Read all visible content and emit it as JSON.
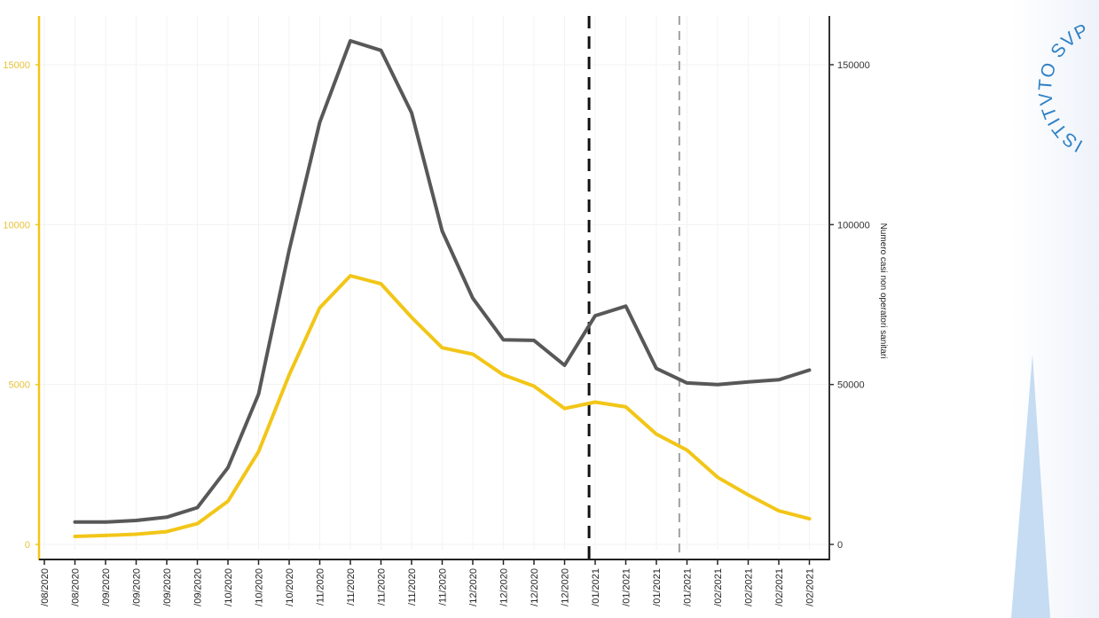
{
  "chart_data": {
    "type": "line",
    "title": "",
    "xlabel": "",
    "ylabel_left": "",
    "ylabel_right": "Numero casi non operatori sanitari",
    "x_tick_labels": [
      "/08/2020",
      "/08/2020",
      "/09/2020",
      "/09/2020",
      "/09/2020",
      "/09/2020",
      "/10/2020",
      "/10/2020",
      "/10/2020",
      "/11/2020",
      "/11/2020",
      "/11/2020",
      "/11/2020",
      "/11/2020",
      "/12/2020",
      "/12/2020",
      "/12/2020",
      "/12/2020",
      "/01/2021",
      "/01/2021",
      "/01/2021",
      "/01/2021",
      "/02/2021",
      "/02/2021",
      "/02/2021",
      "/02/2021"
    ],
    "y_left_ticks": [
      "0",
      "5000",
      "10000",
      "15000"
    ],
    "y_left_ticks_shown": [
      "0",
      "5000",
      "10000",
      "15000"
    ],
    "y_right_ticks": [
      "0",
      "50000",
      "100000",
      "150000"
    ],
    "ylim_left": [
      0,
      16500
    ],
    "ylim_right": [
      0,
      165000
    ],
    "grid": true,
    "series": [
      {
        "axis": "right",
        "color": "#585858",
        "points": [
          [
            1,
            7000
          ],
          [
            2,
            7000
          ],
          [
            3,
            7500
          ],
          [
            4,
            8500
          ],
          [
            5,
            11500
          ],
          [
            6,
            24000
          ],
          [
            7,
            47000
          ],
          [
            8,
            92000
          ],
          [
            9,
            132000
          ],
          [
            10,
            157500
          ],
          [
            11,
            154500
          ],
          [
            12,
            135000
          ],
          [
            13,
            98000
          ],
          [
            14,
            77000
          ],
          [
            15,
            64000
          ],
          [
            16,
            63800
          ],
          [
            17,
            56000
          ],
          [
            18,
            71500
          ],
          [
            19,
            74500
          ],
          [
            20,
            55000
          ],
          [
            21,
            50500
          ],
          [
            22,
            50000
          ],
          [
            23,
            50800
          ],
          [
            24,
            51500
          ],
          [
            25,
            54500
          ]
        ]
      },
      {
        "axis": "left",
        "color": "#f2c618",
        "points": [
          [
            1,
            250
          ],
          [
            2,
            280
          ],
          [
            3,
            320
          ],
          [
            4,
            400
          ],
          [
            5,
            650
          ],
          [
            6,
            1350
          ],
          [
            7,
            2900
          ],
          [
            8,
            5300
          ],
          [
            9,
            7400
          ],
          [
            10,
            8400
          ],
          [
            11,
            8150
          ],
          [
            12,
            7100
          ],
          [
            13,
            6150
          ],
          [
            14,
            5950
          ],
          [
            15,
            5300
          ],
          [
            16,
            4950
          ],
          [
            17,
            4250
          ],
          [
            18,
            4450
          ],
          [
            19,
            4300
          ],
          [
            20,
            3450
          ],
          [
            21,
            2950
          ],
          [
            22,
            2100
          ],
          [
            23,
            1550
          ],
          [
            24,
            1050
          ],
          [
            25,
            800
          ]
        ]
      }
    ],
    "reference_lines": [
      {
        "x": 17.8,
        "color": "#111111",
        "style": "dashed"
      },
      {
        "x": 20.75,
        "color": "#a0a0a0",
        "style": "dashed"
      }
    ],
    "colors": {
      "left_axis": "#f2c618",
      "right_axis": "#333333",
      "grid": "#f3f3f3",
      "left_tick_text": "#e8c23a",
      "right_tick_text": "#333333"
    }
  },
  "logo": {
    "text": "ISTITVTO SVP"
  }
}
